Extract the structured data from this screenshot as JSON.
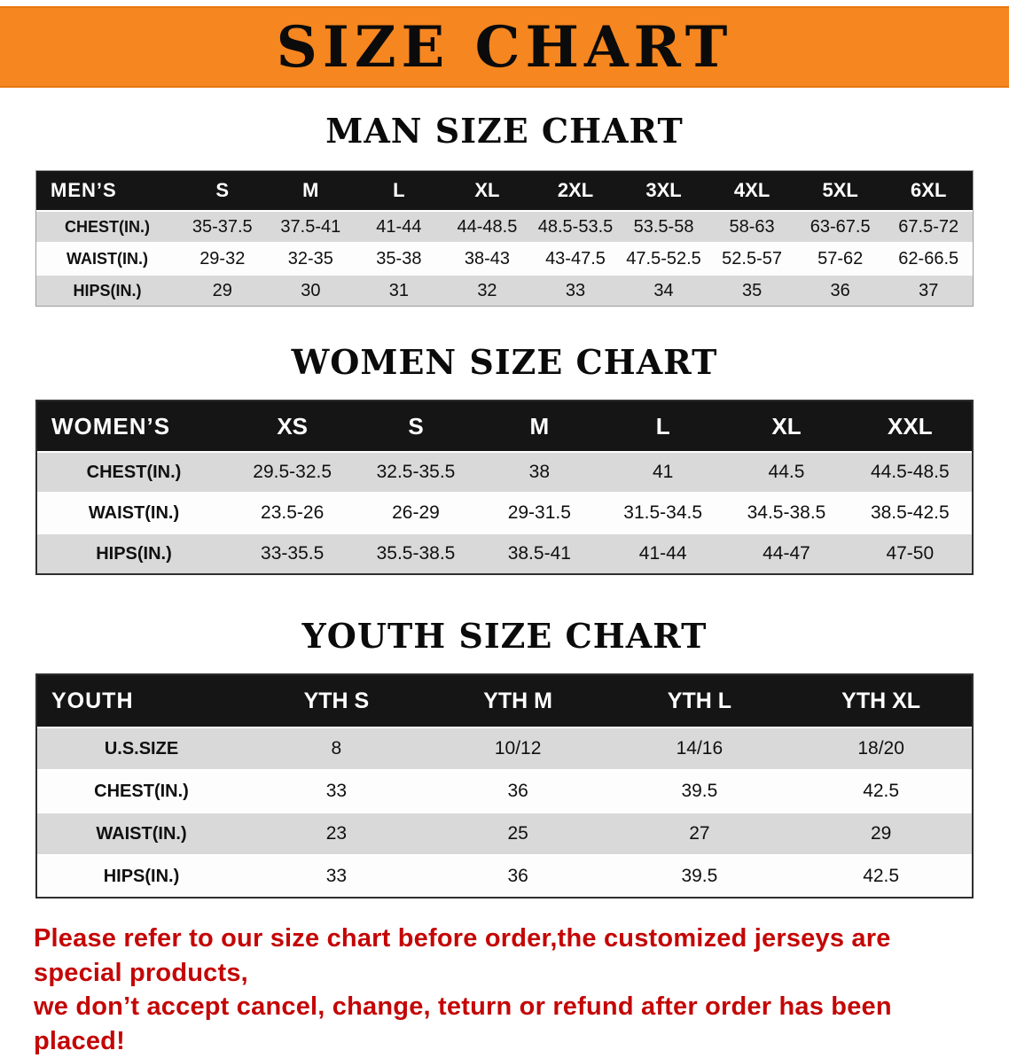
{
  "banner": {
    "title": "SIZE CHART"
  },
  "colors": {
    "banner_bg": "#f6861f",
    "table_header_bg": "#151515",
    "row_shaded": "#d9d9d9",
    "note_text": "#c40606"
  },
  "men": {
    "heading": "MAN SIZE CHART",
    "label": "MEN’S",
    "sizes": [
      "S",
      "M",
      "L",
      "XL",
      "2XL",
      "3XL",
      "4XL",
      "5XL",
      "6XL"
    ],
    "rows": [
      {
        "label": "CHEST(IN.)",
        "values": [
          "35-37.5",
          "37.5-41",
          "41-44",
          "44-48.5",
          "48.5-53.5",
          "53.5-58",
          "58-63",
          "63-67.5",
          "67.5-72"
        ]
      },
      {
        "label": "WAIST(IN.)",
        "values": [
          "29-32",
          "32-35",
          "35-38",
          "38-43",
          "43-47.5",
          "47.5-52.5",
          "52.5-57",
          "57-62",
          "62-66.5"
        ]
      },
      {
        "label": "HIPS(IN.)",
        "values": [
          "29",
          "30",
          "31",
          "32",
          "33",
          "34",
          "35",
          "36",
          "37"
        ]
      }
    ]
  },
  "women": {
    "heading": "WOMEN SIZE CHART",
    "label": "WOMEN’S",
    "sizes": [
      "XS",
      "S",
      "M",
      "L",
      "XL",
      "XXL"
    ],
    "rows": [
      {
        "label": "CHEST(IN.)",
        "values": [
          "29.5-32.5",
          "32.5-35.5",
          "38",
          "41",
          "44.5",
          "44.5-48.5"
        ]
      },
      {
        "label": "WAIST(IN.)",
        "values": [
          "23.5-26",
          "26-29",
          "29-31.5",
          "31.5-34.5",
          "34.5-38.5",
          "38.5-42.5"
        ]
      },
      {
        "label": "HIPS(IN.)",
        "values": [
          "33-35.5",
          "35.5-38.5",
          "38.5-41",
          "41-44",
          "44-47",
          "47-50"
        ]
      }
    ]
  },
  "youth": {
    "heading": "YOUTH SIZE CHART",
    "label": "YOUTH",
    "sizes": [
      "YTH S",
      "YTH M",
      "YTH L",
      "YTH XL"
    ],
    "rows": [
      {
        "label": "U.S.SIZE",
        "values": [
          "8",
          "10/12",
          "14/16",
          "18/20"
        ]
      },
      {
        "label": "CHEST(IN.)",
        "values": [
          "33",
          "36",
          "39.5",
          "42.5"
        ]
      },
      {
        "label": "WAIST(IN.)",
        "values": [
          "23",
          "25",
          "27",
          "29"
        ]
      },
      {
        "label": "HIPS(IN.)",
        "values": [
          "33",
          "36",
          "39.5",
          "42.5"
        ]
      }
    ]
  },
  "note": {
    "line1": "Please refer to our size chart before order,the customized jerseys are special products,",
    "line2": "we don’t accept cancel, change, teturn or refund after order has been placed!"
  }
}
